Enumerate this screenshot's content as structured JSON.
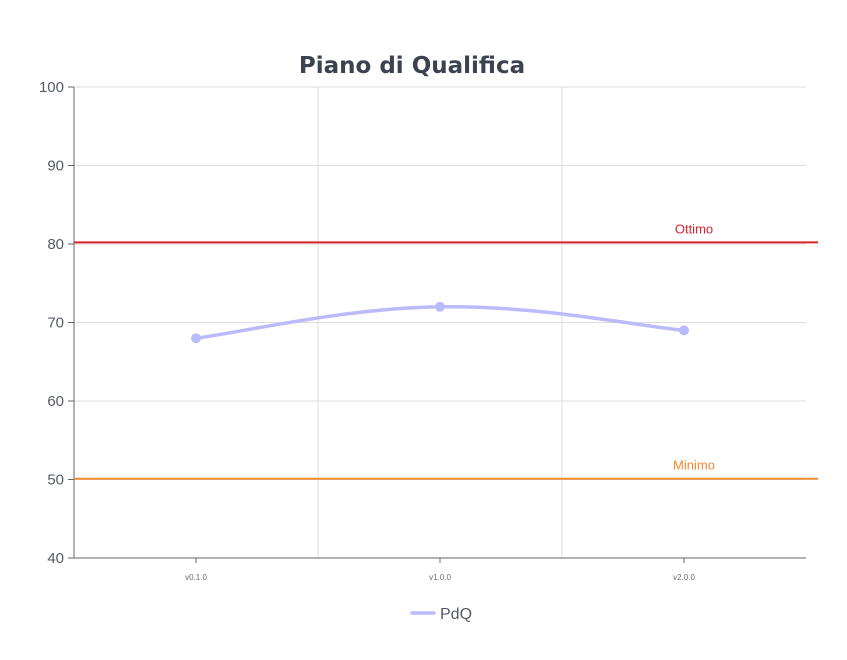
{
  "chart_data": {
    "type": "line",
    "title": "Piano di Qualifica",
    "categories": [
      "v0.1.0",
      "v1.0.0",
      "v2.0.0"
    ],
    "series": [
      {
        "name": "PdQ",
        "values": [
          68,
          72,
          69
        ],
        "color": "#bbbbfb"
      }
    ],
    "reference_lines": [
      {
        "label": "Ottimo",
        "value": 80.2,
        "color": "#d8232f"
      },
      {
        "label": "Minimo",
        "value": 50.1,
        "color": "#ef8b31"
      }
    ],
    "ylim": [
      40,
      100
    ],
    "yticks": [
      40,
      50,
      60,
      70,
      80,
      90,
      100
    ],
    "grid": true,
    "legend": "bottom-center",
    "colors": {
      "grid": "#dddddd",
      "axis": "#666666",
      "text": "#3b4351"
    }
  }
}
